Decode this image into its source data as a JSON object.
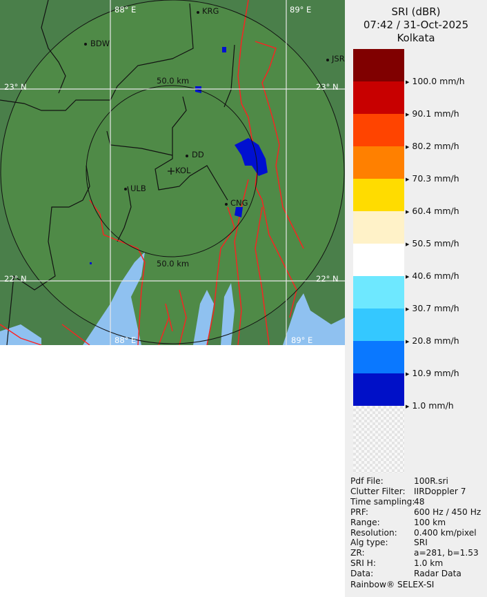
{
  "header": {
    "product": "SRI (dBR)",
    "datetime": "07:42 / 31-Oct-2025",
    "station": "Kolkata"
  },
  "map": {
    "grid": {
      "lon_labels": [
        "88° E",
        "89° E"
      ],
      "lat_labels": [
        "23° N",
        "22° N"
      ]
    },
    "range_rings": [
      "50.0 km",
      "50.0 km"
    ],
    "cities": [
      "KRG",
      "BDW",
      "JSR",
      "DD",
      "KOL",
      "ULB",
      "CNG"
    ],
    "colors": {
      "land": "#4f8a47",
      "water": "#8fc1f0",
      "rivers": "#ff2020",
      "borders": "#111111",
      "rain": "#0010d0"
    }
  },
  "legend": {
    "unit": "mm/h",
    "colors": [
      "#800000",
      "#c80000",
      "#ff4400",
      "#ff8000",
      "#ffdc00",
      "#fff2c8",
      "#ffffff",
      "#6ee8ff",
      "#34c8ff",
      "#0a78ff",
      "#0010c8"
    ],
    "labels": [
      "100.0 mm/h",
      "90.1 mm/h",
      "80.2 mm/h",
      "70.3 mm/h",
      "60.4 mm/h",
      "50.5 mm/h",
      "40.6 mm/h",
      "30.7 mm/h",
      "20.8 mm/h",
      "10.9 mm/h",
      "1.0 mm/h"
    ]
  },
  "info": [
    {
      "k": "Pdf File:",
      "v": "100R.sri"
    },
    {
      "k": "Clutter Filter:",
      "v": "IIRDoppler 7"
    },
    {
      "k": "Time sampling:",
      "v": "48"
    },
    {
      "k": "PRF:",
      "v": "600 Hz / 450 Hz"
    },
    {
      "k": "Range:",
      "v": "100 km"
    },
    {
      "k": "Resolution:",
      "v": "0.400 km/pixel"
    },
    {
      "k": "Alg type:",
      "v": "SRI"
    },
    {
      "k": "ZR:",
      "v": "a=281, b=1.53"
    },
    {
      "k": "SRI H:",
      "v": "1.0 km"
    },
    {
      "k": "Data:",
      "v": "Radar Data"
    }
  ],
  "footer": "Rainbow® SELEX-SI"
}
